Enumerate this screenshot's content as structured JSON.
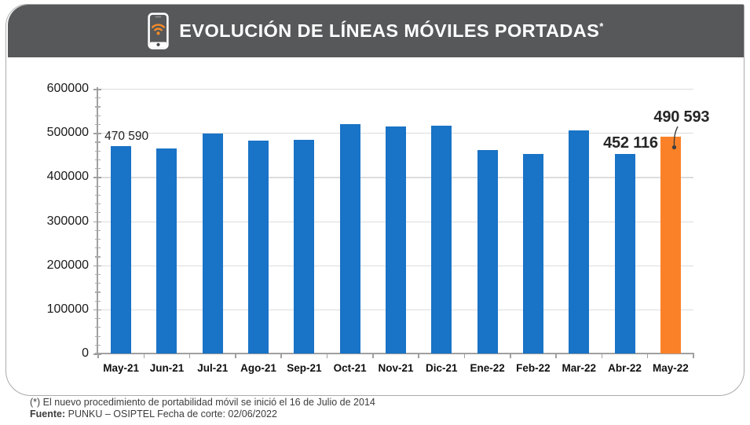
{
  "header": {
    "title": "EVOLUCIÓN DE LÍNEAS MÓVILES PORTADAS",
    "title_superscript": "*",
    "icon": "smartphone-wifi-icon",
    "bg_color": "#57585a",
    "wifi_color": "#f68b28"
  },
  "chart_data": {
    "type": "bar",
    "title": "EVOLUCIÓN DE LÍNEAS MÓVILES PORTADAS*",
    "categories": [
      "May-21",
      "Jun-21",
      "Jul-21",
      "Ago-21",
      "Sep-21",
      "Oct-21",
      "Nov-21",
      "Dic-21",
      "Ene-22",
      "Feb-22",
      "Mar-22",
      "Abr-22",
      "May-22"
    ],
    "values": [
      470590,
      464000,
      498000,
      483000,
      484000,
      520000,
      514000,
      516000,
      461000,
      453000,
      506000,
      452116,
      490593
    ],
    "labeled_values": {
      "May-21": "470 590",
      "Abr-22": "452 116",
      "May-22": "490 593"
    },
    "highlight_index": 12,
    "bar_color_default": "#1973c6",
    "bar_color_highlight": "#fa8128",
    "ylim": [
      0,
      600000
    ],
    "y_major_step": 100000,
    "y_minor_step": 20000,
    "y_tick_labels": [
      "0",
      "100000",
      "200000",
      "300000",
      "400000",
      "500000",
      "600000"
    ],
    "grid": true,
    "legend": "none",
    "annotations": [
      {
        "target": "May-21",
        "text": "470 590",
        "style": "regular",
        "callout": false
      },
      {
        "target": "Abr-22",
        "text": "452 116",
        "style": "bold",
        "callout": false
      },
      {
        "target": "May-22",
        "text": "490 593",
        "style": "bold",
        "callout": true
      }
    ]
  },
  "footer": {
    "note": "(*) El nuevo procedimiento de portabilidad móvil se inició el 16 de Julio de 2014",
    "source_label": "Fuente:",
    "source_rest": " PUNKU – OSIPTEL Fecha de corte: 02/06/2022"
  }
}
